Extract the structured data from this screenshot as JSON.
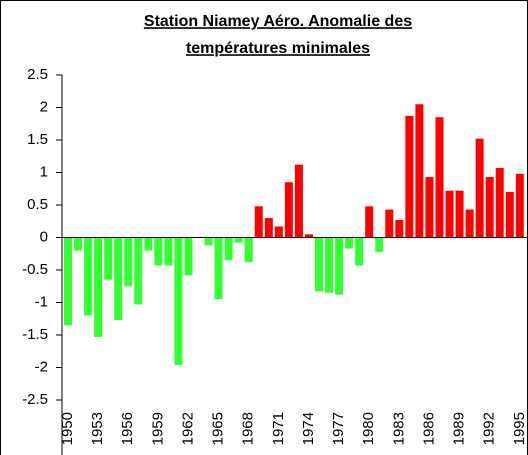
{
  "chart_data": {
    "type": "bar",
    "title": [
      "Station Niamey Aéro. Anomalie des",
      "températures minimales"
    ],
    "categories": [
      "1950",
      null,
      null,
      "1953",
      null,
      null,
      "1956",
      null,
      null,
      "1959",
      null,
      null,
      "1962",
      null,
      null,
      "1965",
      null,
      null,
      "1968",
      null,
      null,
      "1971",
      null,
      null,
      "1974",
      null,
      null,
      "1977",
      null,
      null,
      "1980",
      null,
      null,
      "1983",
      null,
      null,
      "1986",
      null,
      null,
      "1989",
      null,
      null,
      "1992",
      null,
      null,
      "1995"
    ],
    "values": [
      -1.35,
      -0.2,
      -1.2,
      -1.53,
      -0.65,
      -1.27,
      -0.75,
      -1.03,
      -0.2,
      -0.43,
      -0.43,
      -1.96,
      -0.58,
      0,
      -0.12,
      -0.95,
      -0.35,
      -0.08,
      -0.38,
      0.48,
      0.3,
      0.17,
      0.85,
      1.12,
      0.05,
      -0.83,
      -0.85,
      -0.88,
      -0.17,
      -0.43,
      0.48,
      -0.22,
      0.43,
      0.27,
      1.87,
      2.05,
      0.93,
      1.85,
      0.72,
      0.72,
      0.43,
      1.52,
      0.93,
      1.07,
      0.7,
      0.98
    ],
    "positive_color": "#ff0000",
    "negative_color": "#33ff33",
    "ylim": [
      -2.5,
      2.5
    ],
    "yticks": [
      -2.5,
      -2,
      -1.5,
      -1,
      -0.5,
      0,
      0.5,
      1,
      1.5,
      2,
      2.5
    ]
  }
}
